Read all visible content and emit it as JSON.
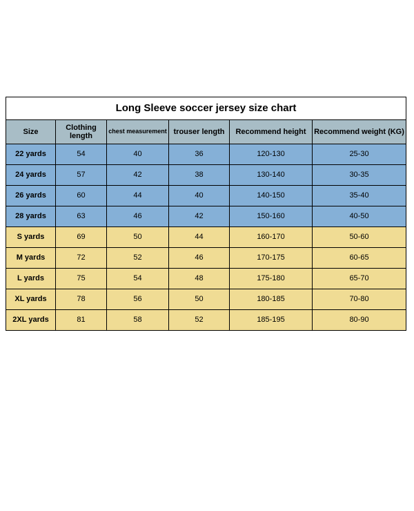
{
  "title": "Long Sleeve soccer jersey size chart",
  "columns": [
    "Size",
    "Clothing length",
    "chest measurement",
    "trouser length",
    "Recommend height",
    "Recommend weight (KG)"
  ],
  "rows": [
    {
      "group": "blue",
      "size": "22 yards",
      "clothing": "54",
      "chest": "40",
      "trouser": "36",
      "height": "120-130",
      "weight": "25-30"
    },
    {
      "group": "blue",
      "size": "24 yards",
      "clothing": "57",
      "chest": "42",
      "trouser": "38",
      "height": "130-140",
      "weight": "30-35"
    },
    {
      "group": "blue",
      "size": "26 yards",
      "clothing": "60",
      "chest": "44",
      "trouser": "40",
      "height": "140-150",
      "weight": "35-40"
    },
    {
      "group": "blue",
      "size": "28 yards",
      "clothing": "63",
      "chest": "46",
      "trouser": "42",
      "height": "150-160",
      "weight": "40-50"
    },
    {
      "group": "yellow",
      "size": "S yards",
      "clothing": "69",
      "chest": "50",
      "trouser": "44",
      "height": "160-170",
      "weight": "50-60"
    },
    {
      "group": "yellow",
      "size": "M yards",
      "clothing": "72",
      "chest": "52",
      "trouser": "46",
      "height": "170-175",
      "weight": "60-65"
    },
    {
      "group": "yellow",
      "size": "L yards",
      "clothing": "75",
      "chest": "54",
      "trouser": "48",
      "height": "175-180",
      "weight": "65-70"
    },
    {
      "group": "yellow",
      "size": "XL yards",
      "clothing": "78",
      "chest": "56",
      "trouser": "50",
      "height": "180-185",
      "weight": "70-80"
    },
    {
      "group": "yellow",
      "size": "2XL yards",
      "clothing": "81",
      "chest": "58",
      "trouser": "52",
      "height": "185-195",
      "weight": "80-90"
    }
  ],
  "colors": {
    "header_bg": "#a8bdc6",
    "blue_bg": "#85b0d7",
    "yellow_bg": "#f0dc94",
    "border": "#000000",
    "page_bg": "#ffffff"
  }
}
